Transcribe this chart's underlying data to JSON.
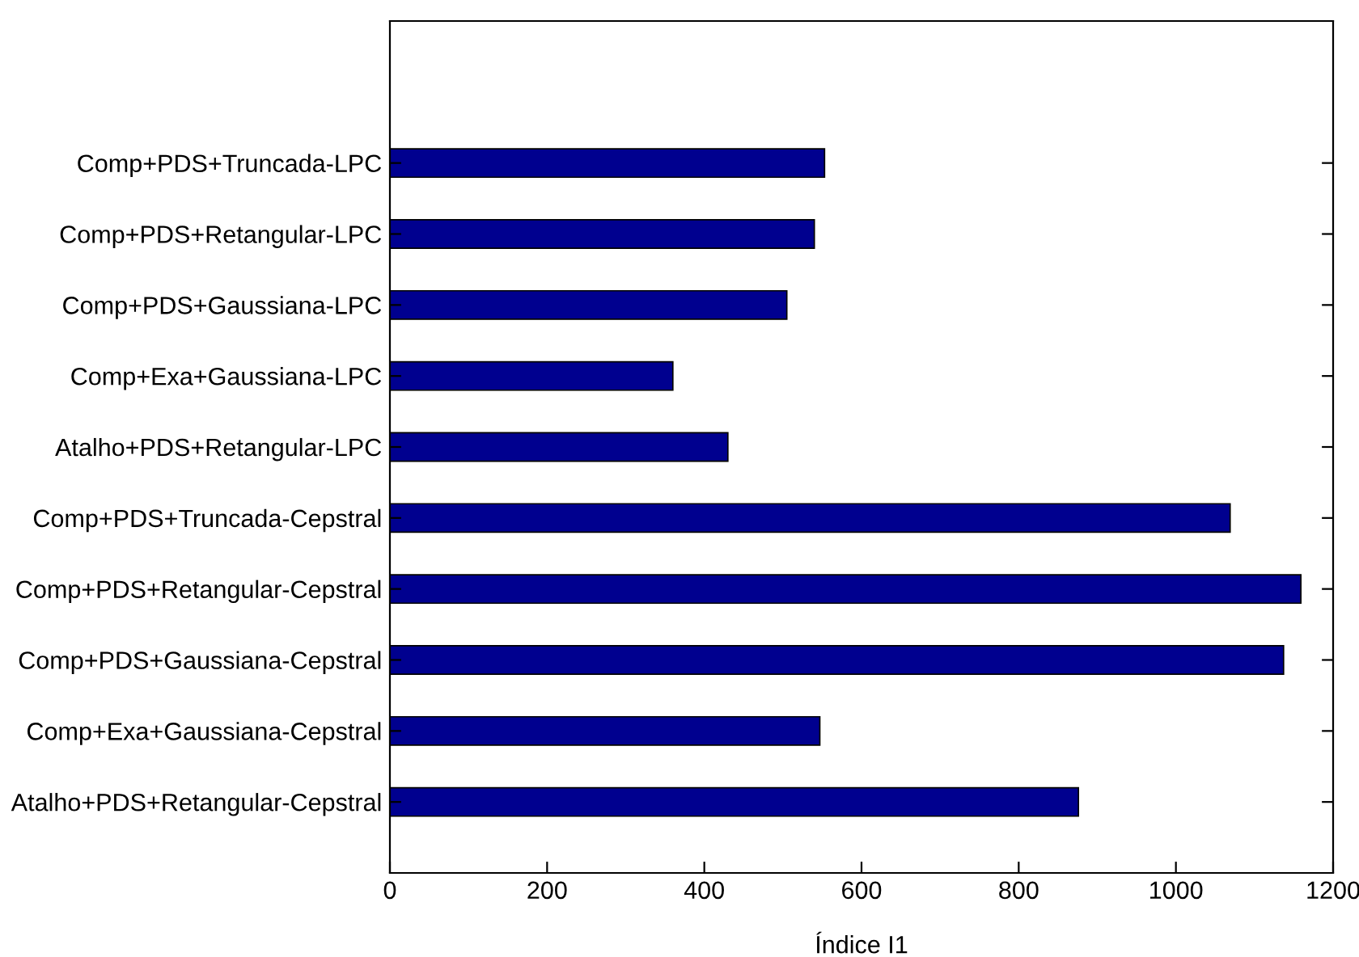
{
  "chart_data": {
    "type": "bar",
    "orientation": "horizontal",
    "xlabel": "Índice I1",
    "categories": [
      "Comp+PDS+Truncada-LPC",
      "Comp+PDS+Retangular-LPC",
      "Comp+PDS+Gaussiana-LPC",
      "Comp+Exa+Gaussiana-LPC",
      "Atalho+PDS+Retangular-LPC",
      "Comp+PDS+Truncada-Cepstral",
      "Comp+PDS+Retangular-Cepstral",
      "Comp+PDS+Gaussiana-Cepstral",
      "Comp+Exa+Gaussiana-Cepstral",
      "Atalho+PDS+Retangular-Cepstral"
    ],
    "values": [
      553,
      540,
      505,
      360,
      430,
      1069,
      1159,
      1137,
      547,
      876
    ],
    "color": "#00008f",
    "xlim": [
      0,
      1200
    ],
    "xticks": [
      0,
      200,
      400,
      600,
      800,
      1000,
      1200
    ],
    "grid": false
  }
}
